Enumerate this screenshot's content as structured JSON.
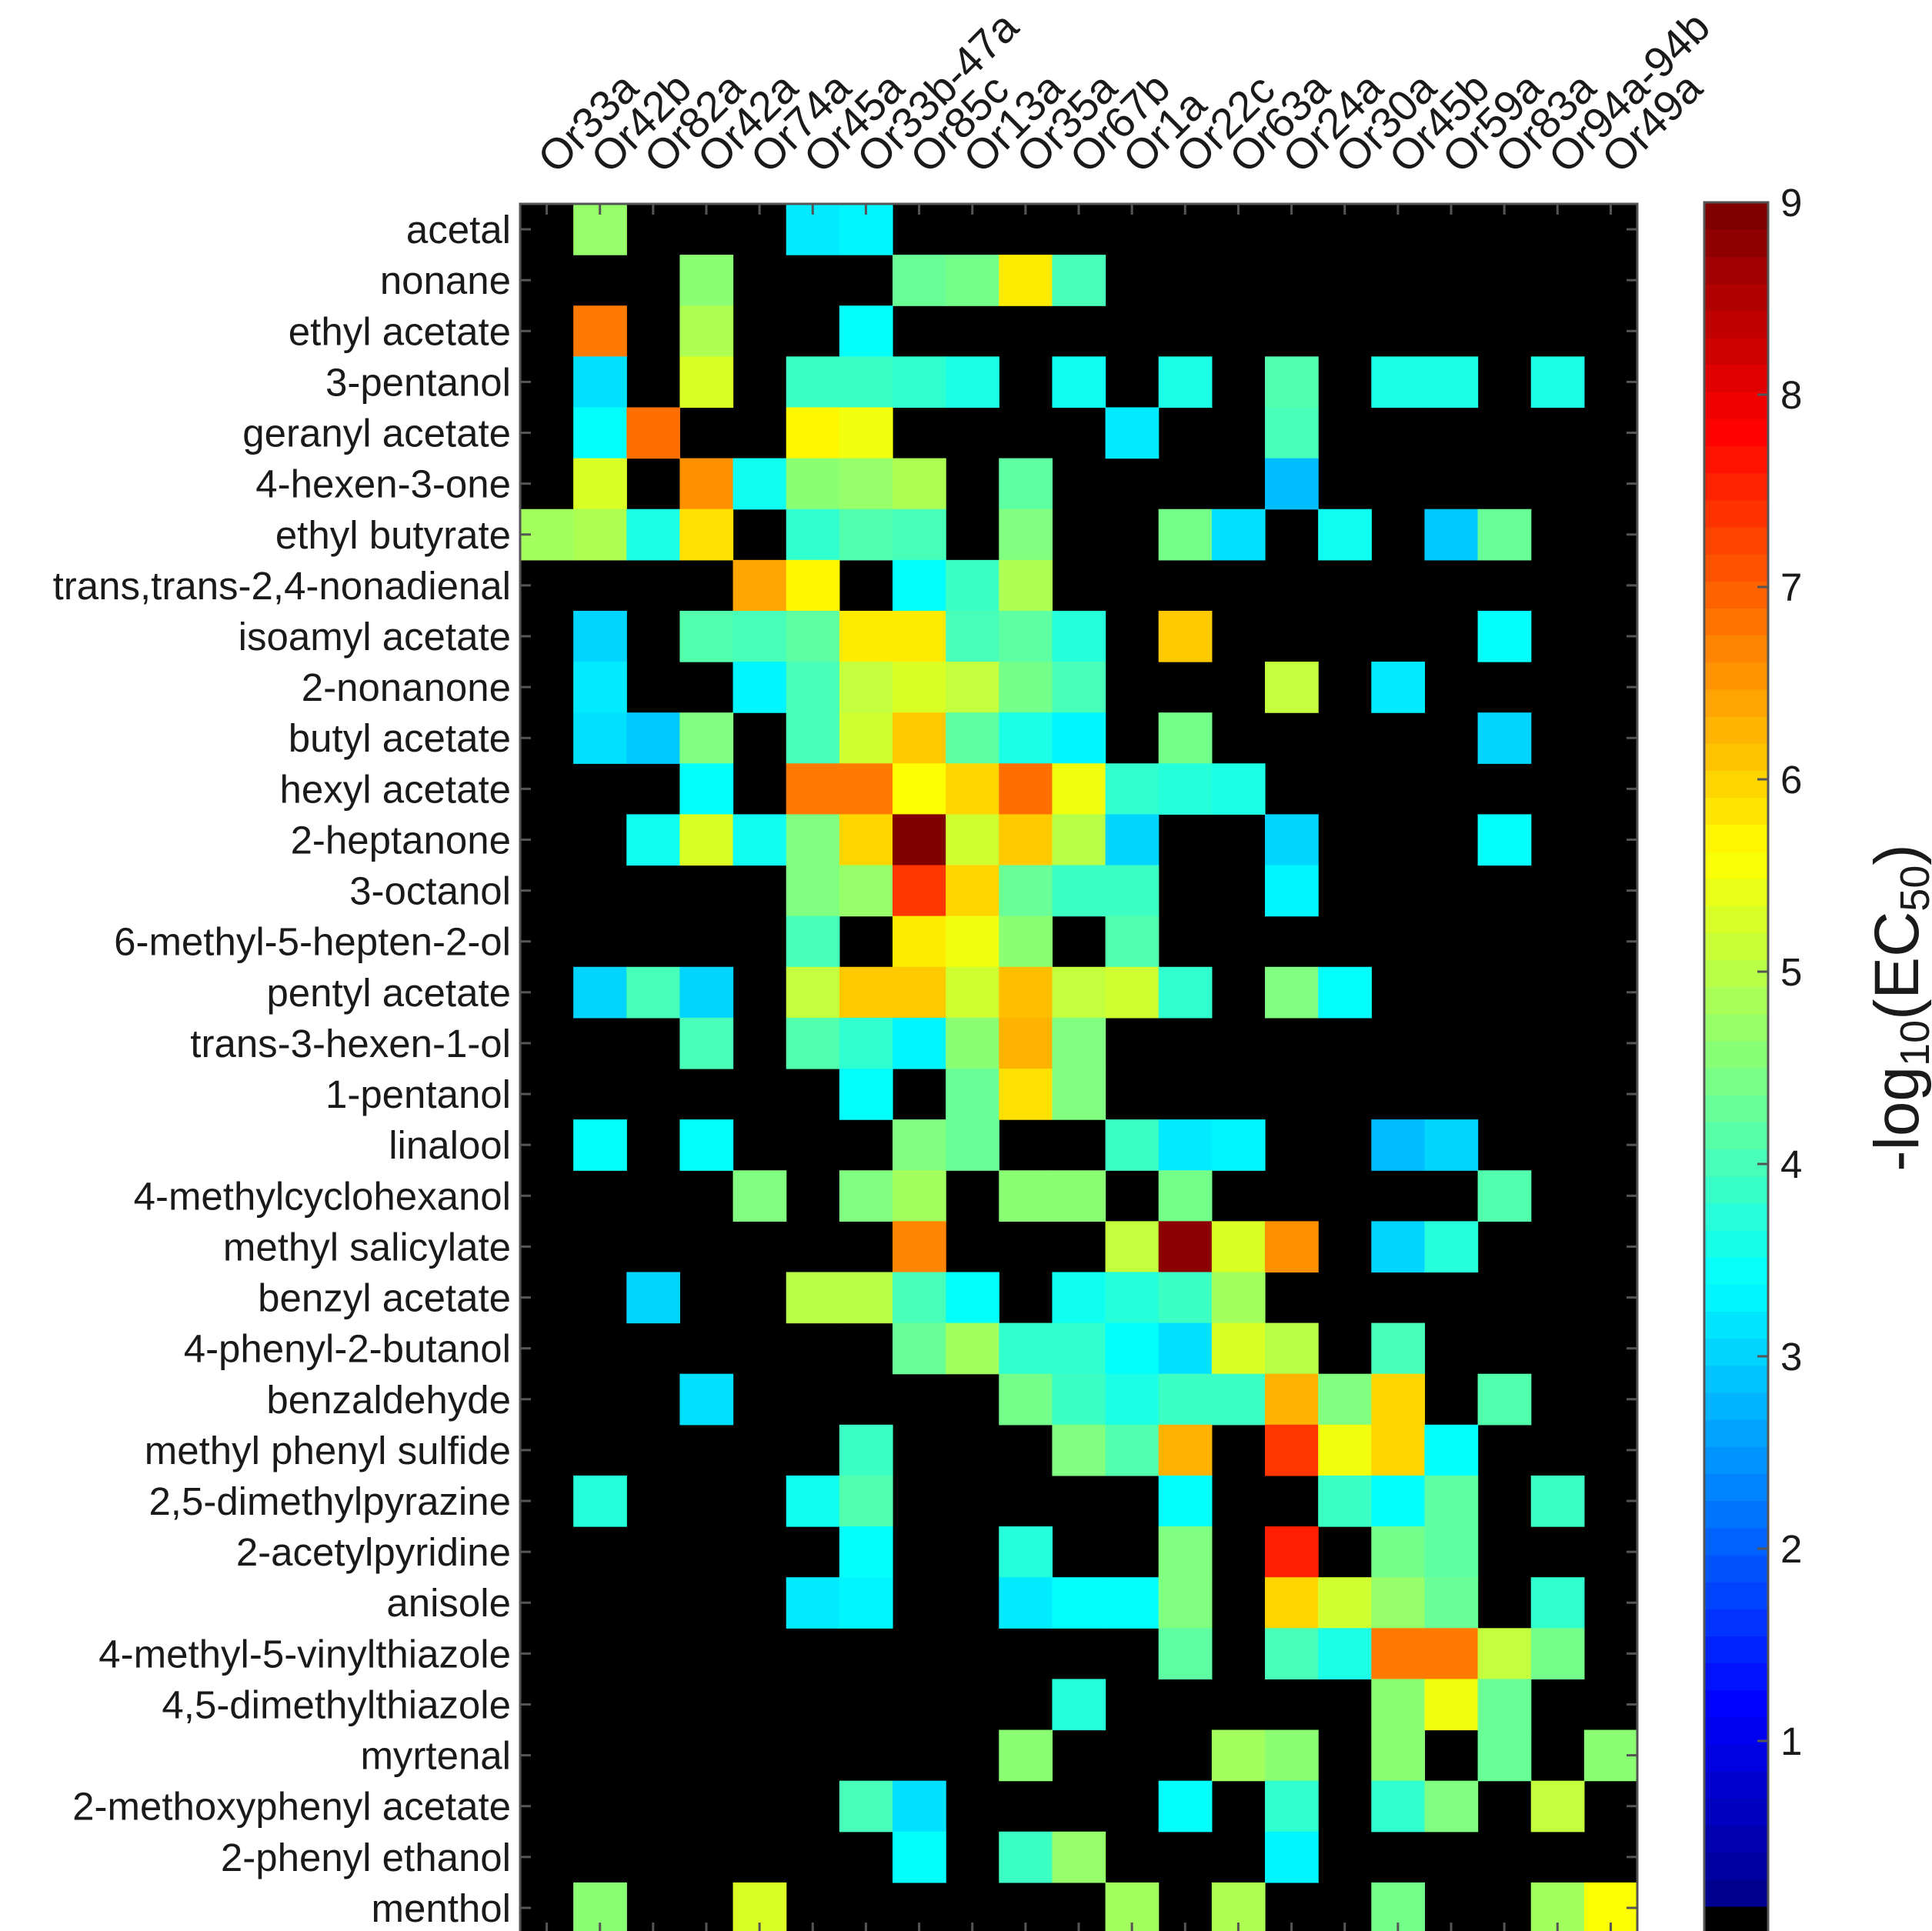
{
  "chart_data": {
    "type": "heatmap",
    "title": "",
    "xlabel": "",
    "ylabel": "",
    "x_categories": [
      "Or33a",
      "Or42b",
      "Or82a",
      "Or42a",
      "Or74a",
      "Or45a",
      "Or33b-47a",
      "Or85c",
      "Or13a",
      "Or35a",
      "Or67b",
      "Or1a",
      "Or22c",
      "Or63a",
      "Or24a",
      "Or30a",
      "Or45b",
      "Or59a",
      "Or83a",
      "Or94a-94b",
      "Or49a"
    ],
    "y_categories": [
      "acetal",
      "nonane",
      "ethyl acetate",
      "3-pentanol",
      "geranyl acetate",
      "4-hexen-3-one",
      "ethyl butyrate",
      "trans,trans-2,4-nonadienal",
      "isoamyl acetate",
      "2-nonanone",
      "butyl acetate",
      "hexyl acetate",
      "2-heptanone",
      "3-octanol",
      "6-methyl-5-hepten-2-ol",
      "pentyl acetate",
      "trans-3-hexen-1-ol",
      "1-pentanol",
      "linalool",
      "4-methylcyclohexanol",
      "methyl salicylate",
      "benzyl acetate",
      "4-phenyl-2-butanol",
      "benzaldehyde",
      "methyl phenyl sulfide",
      "2,5-dimethylpyrazine",
      "2-acetylpyridine",
      "anisole",
      "4-methyl-5-vinylthiazole",
      "4,5-dimethylthiazole",
      "myrtenal",
      "2-methoxyphenyl acetate",
      "2-phenyl ethanol",
      "menthol"
    ],
    "values": [
      [
        0,
        4.7,
        0,
        0,
        0,
        3.2,
        3.3,
        0,
        0,
        0,
        0,
        0,
        0,
        0,
        0,
        0,
        0,
        0,
        0,
        0,
        0
      ],
      [
        0,
        0,
        0,
        4.6,
        0,
        0,
        0,
        4.3,
        4.4,
        5.8,
        4.0,
        0,
        0,
        0,
        0,
        0,
        0,
        0,
        0,
        0,
        0
      ],
      [
        0,
        6.8,
        0,
        4.9,
        0,
        0,
        3.4,
        0,
        0,
        0,
        0,
        0,
        0,
        0,
        0,
        0,
        0,
        0,
        0,
        0,
        0
      ],
      [
        0,
        3.1,
        0,
        5.3,
        0,
        3.9,
        3.9,
        3.8,
        3.6,
        0,
        3.5,
        0,
        3.6,
        0,
        4.1,
        0,
        3.6,
        3.6,
        0,
        3.6,
        0
      ],
      [
        0,
        3.4,
        6.9,
        0,
        0,
        5.7,
        5.5,
        0,
        0,
        0,
        0,
        3.2,
        0,
        0,
        4.0,
        0,
        0,
        0,
        0,
        0,
        0
      ],
      [
        0,
        5.3,
        0,
        6.6,
        3.5,
        4.6,
        4.7,
        4.9,
        0,
        4.2,
        0,
        0,
        0,
        0,
        2.8,
        0,
        0,
        0,
        0,
        0,
        0
      ],
      [
        4.8,
        4.9,
        3.6,
        5.9,
        0,
        3.8,
        4.1,
        4.0,
        0,
        4.5,
        0,
        0,
        4.4,
        3.1,
        0,
        3.5,
        0,
        2.9,
        4.3,
        0,
        0
      ],
      [
        0,
        0,
        0,
        0,
        6.4,
        5.7,
        0,
        3.4,
        3.9,
        4.9,
        0,
        0,
        0,
        0,
        0,
        0,
        0,
        0,
        0,
        0,
        0
      ],
      [
        0,
        3.0,
        0,
        4.1,
        4.0,
        4.2,
        5.8,
        5.8,
        4.0,
        4.2,
        3.7,
        0,
        6.1,
        0,
        0,
        0,
        0,
        0,
        3.4,
        0,
        0
      ],
      [
        0,
        3.2,
        0,
        0,
        3.3,
        4.0,
        5.1,
        5.3,
        5.1,
        4.4,
        4.0,
        0,
        0,
        0,
        5.1,
        0,
        3.2,
        0,
        0,
        0,
        0
      ],
      [
        0,
        3.1,
        2.9,
        4.5,
        0,
        4.0,
        5.2,
        6.1,
        4.2,
        3.6,
        3.3,
        0,
        4.4,
        0,
        0,
        0,
        0,
        0,
        3.0,
        0,
        0
      ],
      [
        0,
        0,
        0,
        3.4,
        0,
        6.8,
        6.8,
        5.6,
        6.0,
        6.9,
        5.5,
        3.8,
        3.7,
        3.6,
        0,
        0,
        0,
        0,
        0,
        0,
        0
      ],
      [
        0,
        0,
        3.5,
        5.3,
        3.5,
        4.5,
        6.0,
        9.0,
        5.2,
        6.1,
        5.0,
        3.0,
        0,
        0,
        3.0,
        0,
        0,
        0,
        3.4,
        0,
        0
      ],
      [
        0,
        0,
        0,
        0,
        0,
        4.5,
        4.7,
        7.4,
        6.0,
        4.3,
        3.9,
        3.9,
        0,
        0,
        3.3,
        0,
        0,
        0,
        0,
        0,
        0
      ],
      [
        0,
        0,
        0,
        0,
        0,
        4.0,
        0,
        5.8,
        5.5,
        4.6,
        0,
        4.1,
        0,
        0,
        0,
        0,
        0,
        0,
        0,
        0,
        0
      ],
      [
        0,
        3.0,
        4.0,
        3.0,
        0,
        5.1,
        6.1,
        6.1,
        5.2,
        6.2,
        5.1,
        5.2,
        3.8,
        0,
        4.5,
        3.4,
        0,
        0,
        0,
        0,
        0
      ],
      [
        0,
        0,
        0,
        4.0,
        0,
        4.1,
        3.8,
        3.3,
        4.6,
        6.3,
        4.5,
        0,
        0,
        0,
        0,
        0,
        0,
        0,
        0,
        0,
        0
      ],
      [
        0,
        0,
        0,
        0,
        0,
        0,
        3.4,
        0,
        4.3,
        5.9,
        4.5,
        0,
        0,
        0,
        0,
        0,
        0,
        0,
        0,
        0,
        0
      ],
      [
        0,
        3.4,
        0,
        3.4,
        0,
        0,
        0,
        4.5,
        4.3,
        0,
        0,
        3.9,
        3.2,
        3.3,
        0,
        0,
        2.8,
        3.0,
        0,
        0,
        0
      ],
      [
        0,
        0,
        0,
        0,
        4.5,
        0,
        4.5,
        4.8,
        0,
        4.6,
        4.6,
        0,
        4.4,
        0,
        0,
        0,
        0,
        0,
        4.1,
        0,
        0
      ],
      [
        0,
        0,
        0,
        0,
        0,
        0,
        0,
        6.7,
        0,
        0,
        0,
        5.1,
        8.9,
        5.3,
        6.6,
        0,
        3.0,
        3.7,
        0,
        0,
        0
      ],
      [
        0,
        0,
        3.0,
        0,
        0,
        5.0,
        5.0,
        4.0,
        3.4,
        0,
        3.5,
        3.7,
        3.9,
        4.8,
        0,
        0,
        0,
        0,
        0,
        0,
        0
      ],
      [
        0,
        0,
        0,
        0,
        0,
        0,
        0,
        4.3,
        4.8,
        3.8,
        3.8,
        3.4,
        3.1,
        5.3,
        5.0,
        0,
        4.0,
        0,
        0,
        0,
        0
      ],
      [
        0,
        0,
        0,
        3.1,
        0,
        0,
        0,
        0,
        0,
        4.4,
        3.9,
        3.6,
        3.9,
        3.9,
        6.3,
        4.5,
        6.0,
        0,
        4.1,
        0,
        0
      ],
      [
        0,
        0,
        0,
        0,
        0,
        0,
        3.9,
        0,
        0,
        0,
        4.5,
        4.1,
        6.3,
        0,
        7.4,
        5.5,
        6.0,
        3.4,
        0,
        0,
        0
      ],
      [
        0,
        3.7,
        0,
        0,
        0,
        3.5,
        4.1,
        0,
        0,
        0,
        0,
        0,
        3.4,
        0,
        0,
        3.9,
        3.4,
        4.2,
        0,
        3.9,
        0
      ],
      [
        0,
        0,
        0,
        0,
        0,
        0,
        3.4,
        0,
        0,
        3.7,
        0,
        0,
        4.5,
        0,
        7.6,
        0,
        4.4,
        4.2,
        0,
        0,
        0
      ],
      [
        0,
        0,
        0,
        0,
        0,
        3.2,
        3.3,
        0,
        0,
        3.2,
        3.4,
        3.4,
        4.5,
        0,
        6.0,
        5.2,
        4.7,
        4.3,
        0,
        3.8,
        0
      ],
      [
        0,
        0,
        0,
        0,
        0,
        0,
        0,
        0,
        0,
        0,
        0,
        0,
        4.2,
        0,
        4.0,
        3.6,
        6.8,
        6.8,
        5.1,
        4.4,
        0
      ],
      [
        0,
        0,
        0,
        0,
        0,
        0,
        0,
        0,
        0,
        0,
        3.7,
        0,
        0,
        0,
        0,
        0,
        4.6,
        5.5,
        4.3,
        0,
        0
      ],
      [
        0,
        0,
        0,
        0,
        0,
        0,
        0,
        0,
        0,
        4.6,
        0,
        0,
        0,
        4.8,
        4.6,
        0,
        4.6,
        0,
        4.3,
        0,
        4.6
      ],
      [
        0,
        0,
        0,
        0,
        0,
        0,
        4.0,
        3.1,
        0,
        0,
        0,
        0,
        3.4,
        0,
        3.8,
        0,
        3.8,
        4.5,
        0,
        5.1,
        0
      ],
      [
        0,
        0,
        0,
        0,
        0,
        0,
        0,
        3.4,
        0,
        3.9,
        4.7,
        0,
        0,
        0,
        3.3,
        0,
        0,
        0,
        0,
        0,
        0
      ],
      [
        0,
        4.6,
        0,
        0,
        5.3,
        0,
        0,
        0,
        0,
        0,
        0,
        4.8,
        0,
        4.9,
        0,
        0,
        4.4,
        0,
        0,
        4.8,
        5.6
      ]
    ],
    "null_value": 0,
    "zlim": [
      0,
      9
    ],
    "colorbar": {
      "label_prefix": "-log",
      "label_sub1": "10",
      "label_mid": "(EC",
      "label_sub2": "50",
      "label_suffix": ")",
      "ticks": [
        "1",
        "2",
        "3",
        "4",
        "5",
        "6",
        "7",
        "8",
        "9"
      ],
      "colormap": "jet",
      "zero_color": "#000000"
    },
    "grid": false,
    "background": "#000000"
  }
}
